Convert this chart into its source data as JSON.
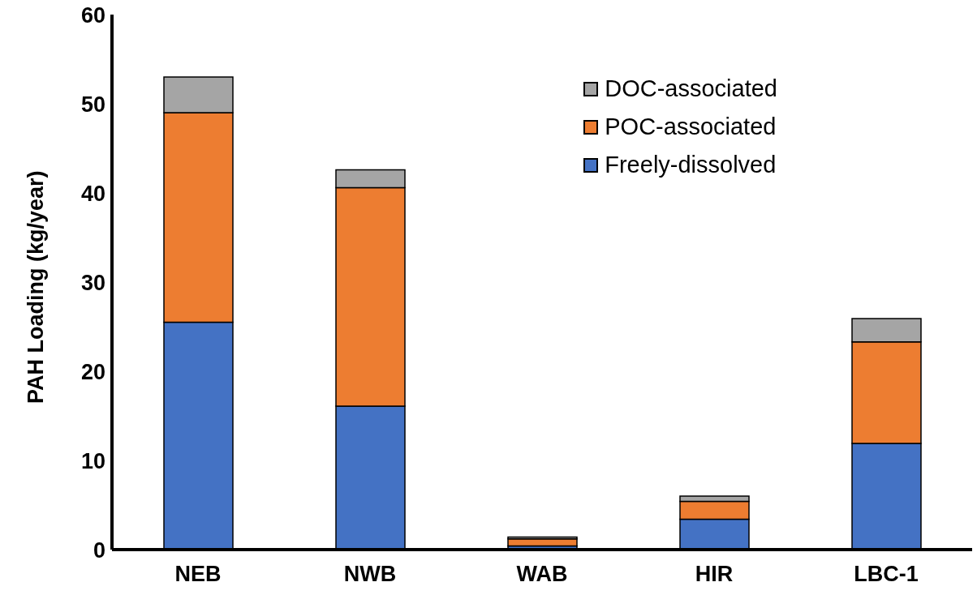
{
  "chart_data": {
    "type": "bar",
    "stacked": true,
    "ylabel": "PAH Loading (kg/year)",
    "categories": [
      "NEB",
      "NWB",
      "WAB",
      "HIR",
      "LBC-1"
    ],
    "series": [
      {
        "name": "Freely-dissolved",
        "color": "#4472c4",
        "values": [
          25.5,
          16.1,
          0.4,
          3.4,
          11.9
        ]
      },
      {
        "name": "POC-associated",
        "color": "#ed7d31",
        "values": [
          23.5,
          24.5,
          0.8,
          2.0,
          11.4
        ]
      },
      {
        "name": "DOC-associated",
        "color": "#a5a5a5",
        "values": [
          4.0,
          2.0,
          0.2,
          0.6,
          2.6
        ]
      }
    ],
    "ylim": [
      0,
      60
    ],
    "yticks": [
      0,
      10,
      20,
      30,
      40,
      50,
      60
    ],
    "grid": false,
    "legend": "top right"
  }
}
